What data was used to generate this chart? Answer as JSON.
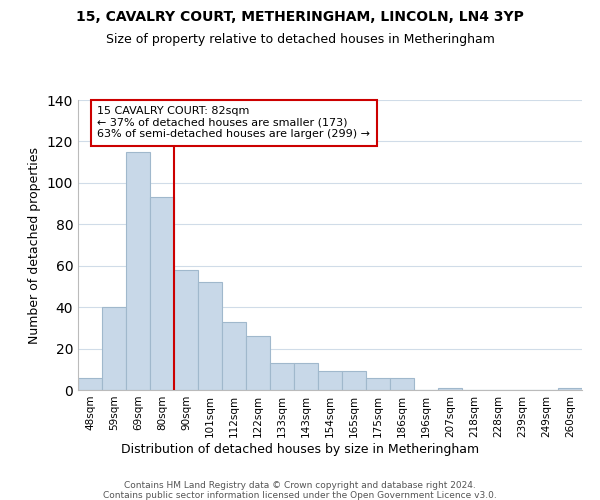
{
  "title": "15, CAVALRY COURT, METHERINGHAM, LINCOLN, LN4 3YP",
  "subtitle": "Size of property relative to detached houses in Metheringham",
  "xlabel": "Distribution of detached houses by size in Metheringham",
  "ylabel": "Number of detached properties",
  "bar_labels": [
    "48sqm",
    "59sqm",
    "69sqm",
    "80sqm",
    "90sqm",
    "101sqm",
    "112sqm",
    "122sqm",
    "133sqm",
    "143sqm",
    "154sqm",
    "165sqm",
    "175sqm",
    "186sqm",
    "196sqm",
    "207sqm",
    "218sqm",
    "228sqm",
    "239sqm",
    "249sqm",
    "260sqm"
  ],
  "bar_values": [
    6,
    40,
    115,
    93,
    58,
    52,
    33,
    26,
    13,
    13,
    9,
    9,
    6,
    6,
    0,
    1,
    0,
    0,
    0,
    0,
    1
  ],
  "bar_color": "#c8d8e8",
  "bar_edge_color": "#a0b8cc",
  "vline_x_index": 3,
  "vline_color": "#cc0000",
  "ylim": [
    0,
    140
  ],
  "yticks": [
    0,
    20,
    40,
    60,
    80,
    100,
    120,
    140
  ],
  "annotation_title": "15 CAVALRY COURT: 82sqm",
  "annotation_line1": "← 37% of detached houses are smaller (173)",
  "annotation_line2": "63% of semi-detached houses are larger (299) →",
  "annotation_box_color": "#ffffff",
  "annotation_box_edge": "#cc0000",
  "footer1": "Contains HM Land Registry data © Crown copyright and database right 2024.",
  "footer2": "Contains public sector information licensed under the Open Government Licence v3.0.",
  "background_color": "#ffffff",
  "grid_color": "#d0dce8"
}
